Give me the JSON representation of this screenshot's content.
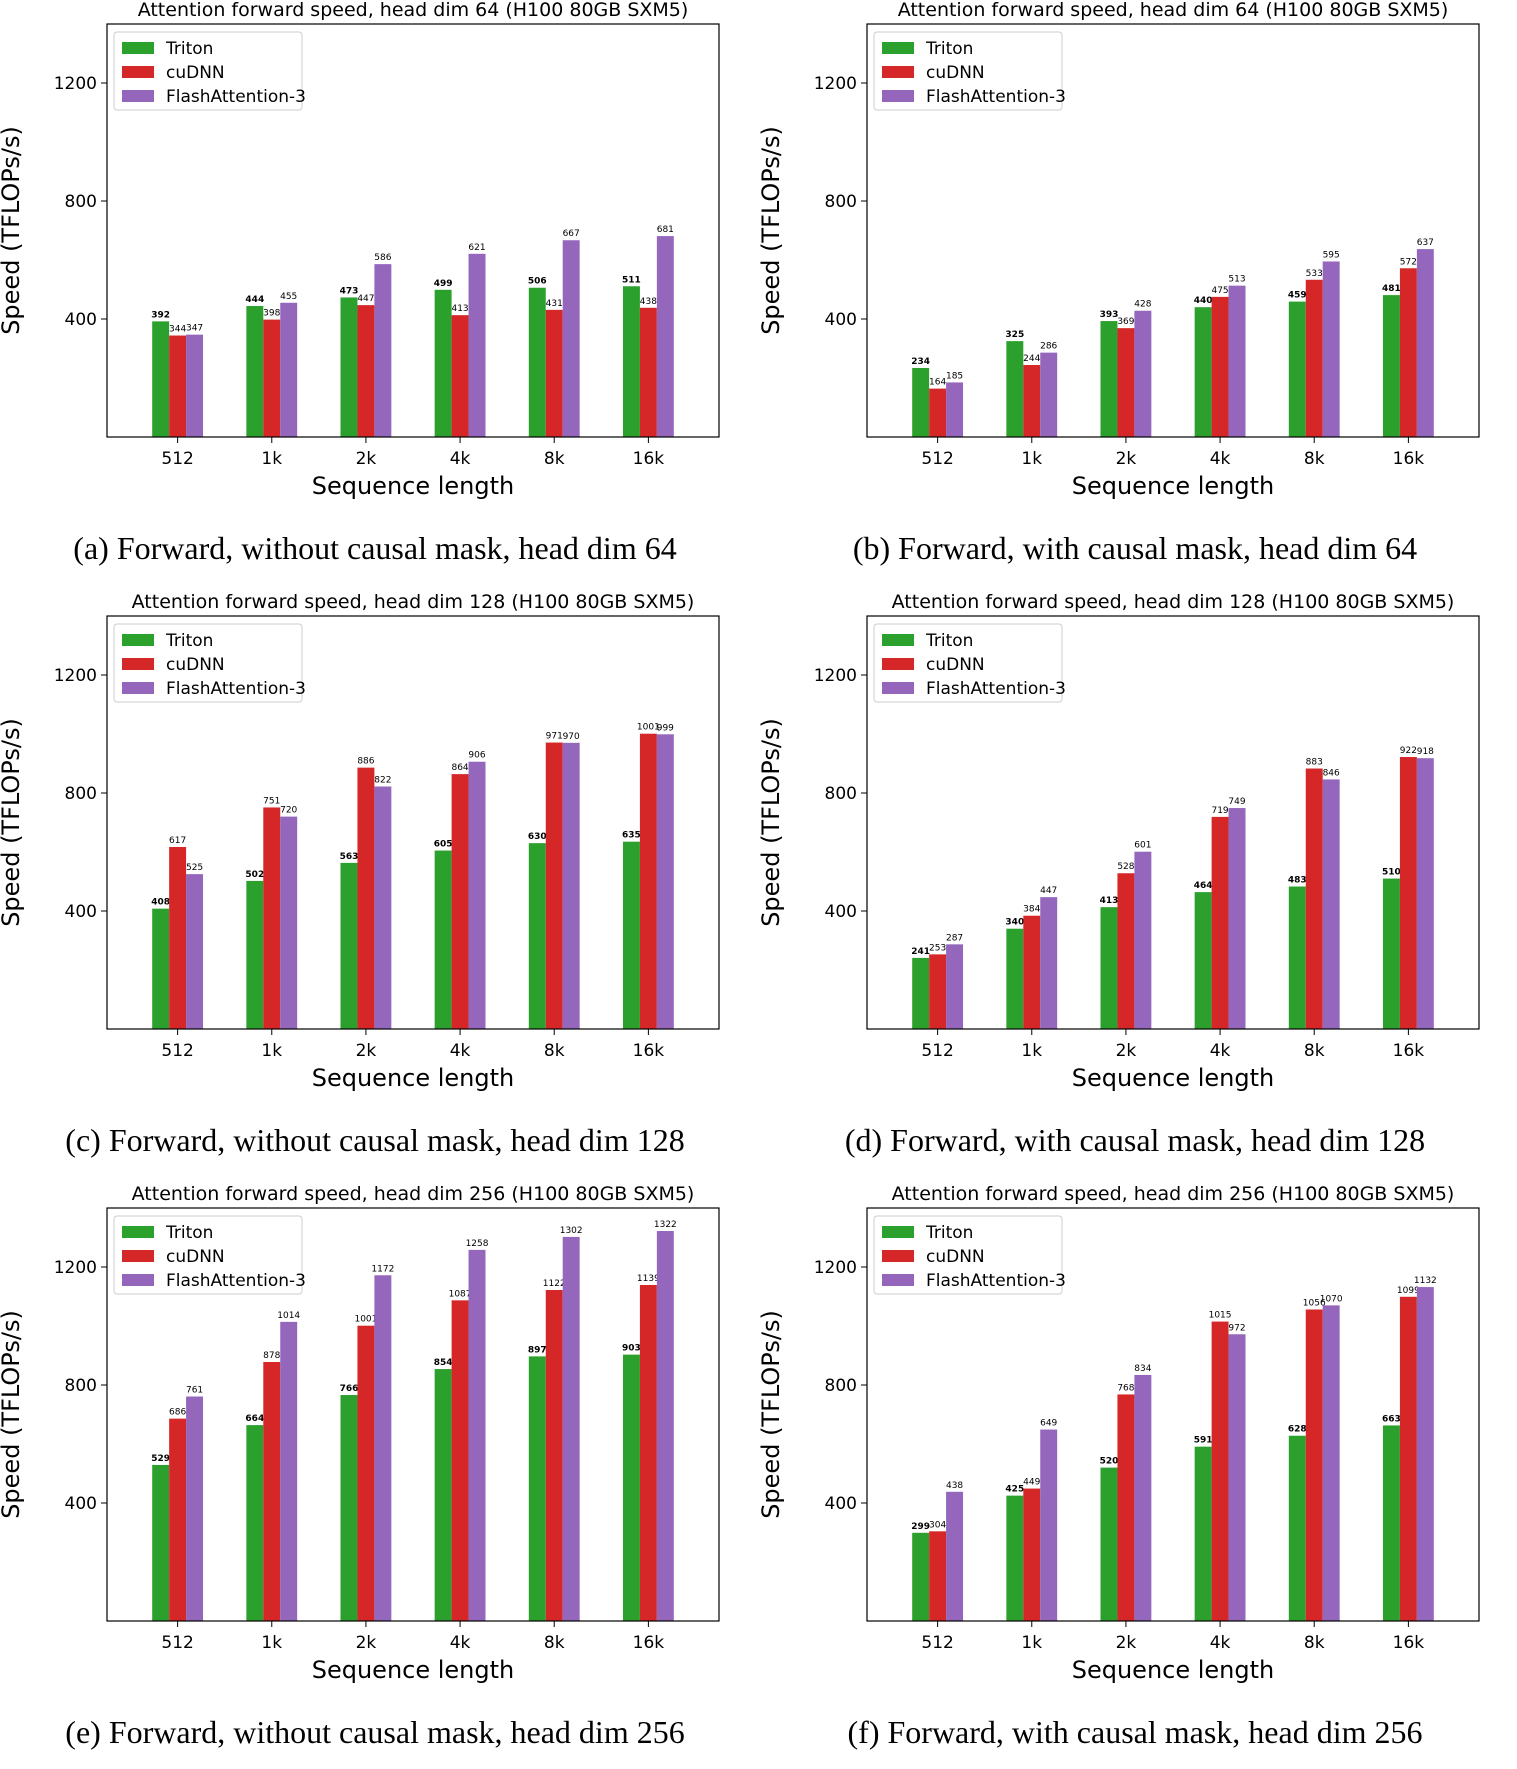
{
  "chart_data": [
    {
      "type": "bar",
      "caption": "(a) Forward, without causal mask, head dim 64",
      "title": "Attention forward speed, head dim 64 (H100 80GB SXM5)",
      "xlabel": "Sequence length",
      "ylabel": "Speed (TFLOPs/s)",
      "categories": [
        "512",
        "1k",
        "2k",
        "4k",
        "8k",
        "16k"
      ],
      "yticks": [
        400,
        800,
        1200
      ],
      "ylim": [
        0,
        1400
      ],
      "legend": "top-left",
      "series": [
        {
          "name": "Triton",
          "color": "#2ca02c",
          "values": [
            392,
            444,
            473,
            499,
            506,
            511
          ]
        },
        {
          "name": "cuDNN",
          "color": "#d62728",
          "values": [
            344,
            398,
            447,
            413,
            431,
            438
          ]
        },
        {
          "name": "FlashAttention-3",
          "color": "#9467bd",
          "values": [
            347,
            455,
            586,
            621,
            667,
            681
          ]
        }
      ]
    },
    {
      "type": "bar",
      "caption": "(b) Forward, with causal mask, head dim 64",
      "title": "Attention forward speed, head dim 64 (H100 80GB SXM5)",
      "xlabel": "Sequence length",
      "ylabel": "Speed (TFLOPs/s)",
      "categories": [
        "512",
        "1k",
        "2k",
        "4k",
        "8k",
        "16k"
      ],
      "yticks": [
        400,
        800,
        1200
      ],
      "ylim": [
        0,
        1400
      ],
      "legend": "top-left",
      "series": [
        {
          "name": "Triton",
          "color": "#2ca02c",
          "values": [
            234,
            325,
            393,
            440,
            459,
            481
          ]
        },
        {
          "name": "cuDNN",
          "color": "#d62728",
          "values": [
            164,
            244,
            369,
            475,
            533,
            572
          ]
        },
        {
          "name": "FlashAttention-3",
          "color": "#9467bd",
          "values": [
            185,
            286,
            428,
            513,
            595,
            637
          ]
        }
      ]
    },
    {
      "type": "bar",
      "caption": "(c) Forward, without causal mask, head dim 128",
      "title": "Attention forward speed, head dim 128 (H100 80GB SXM5)",
      "xlabel": "Sequence length",
      "ylabel": "Speed (TFLOPs/s)",
      "categories": [
        "512",
        "1k",
        "2k",
        "4k",
        "8k",
        "16k"
      ],
      "yticks": [
        400,
        800,
        1200
      ],
      "ylim": [
        0,
        1400
      ],
      "legend": "top-left",
      "series": [
        {
          "name": "Triton",
          "color": "#2ca02c",
          "values": [
            408,
            502,
            563,
            605,
            630,
            635
          ]
        },
        {
          "name": "cuDNN",
          "color": "#d62728",
          "values": [
            617,
            751,
            886,
            864,
            971,
            1001
          ]
        },
        {
          "name": "FlashAttention-3",
          "color": "#9467bd",
          "values": [
            525,
            720,
            822,
            906,
            970,
            999
          ]
        }
      ]
    },
    {
      "type": "bar",
      "caption": "(d) Forward, with causal mask, head dim 128",
      "title": "Attention forward speed, head dim 128 (H100 80GB SXM5)",
      "xlabel": "Sequence length",
      "ylabel": "Speed (TFLOPs/s)",
      "categories": [
        "512",
        "1k",
        "2k",
        "4k",
        "8k",
        "16k"
      ],
      "yticks": [
        400,
        800,
        1200
      ],
      "ylim": [
        0,
        1400
      ],
      "legend": "top-left",
      "series": [
        {
          "name": "Triton",
          "color": "#2ca02c",
          "values": [
            241,
            340,
            413,
            464,
            483,
            510
          ]
        },
        {
          "name": "cuDNN",
          "color": "#d62728",
          "values": [
            253,
            384,
            528,
            719,
            883,
            922
          ]
        },
        {
          "name": "FlashAttention-3",
          "color": "#9467bd",
          "values": [
            287,
            447,
            601,
            749,
            846,
            918
          ]
        }
      ]
    },
    {
      "type": "bar",
      "caption": "(e) Forward, without causal mask, head dim 256",
      "title": "Attention forward speed, head dim 256 (H100 80GB SXM5)",
      "xlabel": "Sequence length",
      "ylabel": "Speed (TFLOPs/s)",
      "categories": [
        "512",
        "1k",
        "2k",
        "4k",
        "8k",
        "16k"
      ],
      "yticks": [
        400,
        800,
        1200
      ],
      "ylim": [
        0,
        1400
      ],
      "legend": "top-left",
      "series": [
        {
          "name": "Triton",
          "color": "#2ca02c",
          "values": [
            529,
            664,
            766,
            854,
            897,
            903
          ]
        },
        {
          "name": "cuDNN",
          "color": "#d62728",
          "values": [
            686,
            878,
            1001,
            1087,
            1122,
            1139
          ]
        },
        {
          "name": "FlashAttention-3",
          "color": "#9467bd",
          "values": [
            761,
            1014,
            1172,
            1258,
            1302,
            1322
          ]
        }
      ]
    },
    {
      "type": "bar",
      "caption": "(f) Forward, with causal mask, head dim 256",
      "title": "Attention forward speed, head dim 256 (H100 80GB SXM5)",
      "xlabel": "Sequence length",
      "ylabel": "Speed (TFLOPs/s)",
      "categories": [
        "512",
        "1k",
        "2k",
        "4k",
        "8k",
        "16k"
      ],
      "yticks": [
        400,
        800,
        1200
      ],
      "ylim": [
        0,
        1400
      ],
      "legend": "top-left",
      "series": [
        {
          "name": "Triton",
          "color": "#2ca02c",
          "values": [
            299,
            425,
            520,
            591,
            628,
            663
          ]
        },
        {
          "name": "cuDNN",
          "color": "#d62728",
          "values": [
            304,
            449,
            768,
            1015,
            1056,
            1099
          ]
        },
        {
          "name": "FlashAttention-3",
          "color": "#9467bd",
          "values": [
            438,
            649,
            834,
            972,
            1070,
            1132
          ]
        }
      ]
    }
  ]
}
